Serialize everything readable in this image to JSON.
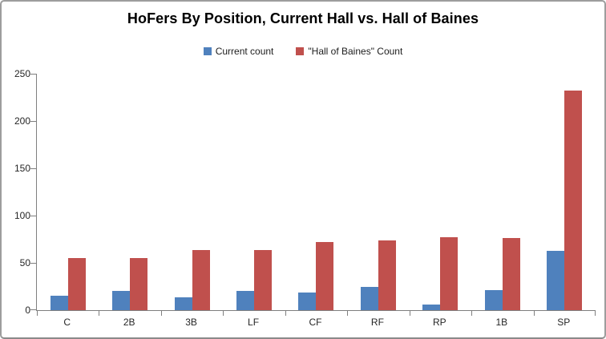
{
  "chart_data": {
    "type": "bar",
    "title": "HoFers By Position, Current Hall vs. Hall of Baines",
    "categories": [
      "C",
      "2B",
      "3B",
      "LF",
      "CF",
      "RF",
      "RP",
      "1B",
      "SP"
    ],
    "series": [
      {
        "name": "Current count",
        "color": "#4F81BD",
        "values": [
          15,
          20,
          14,
          20,
          19,
          25,
          6,
          21,
          63
        ]
      },
      {
        "name": "\"Hall of Baines\" Count",
        "color": "#C0504D",
        "values": [
          55,
          55,
          64,
          64,
          72,
          74,
          77,
          76,
          232
        ]
      }
    ],
    "xlabel": "",
    "ylabel": "",
    "ylim": [
      0,
      250
    ],
    "yticks": [
      0,
      50,
      100,
      150,
      200,
      250
    ],
    "grid": false,
    "legend_position": "top-center"
  },
  "style": {
    "axis_color": "#7F7F7F",
    "frame_border_color": "#9D9D9D",
    "text_color": "#262626",
    "background": "#FFFFFF"
  }
}
